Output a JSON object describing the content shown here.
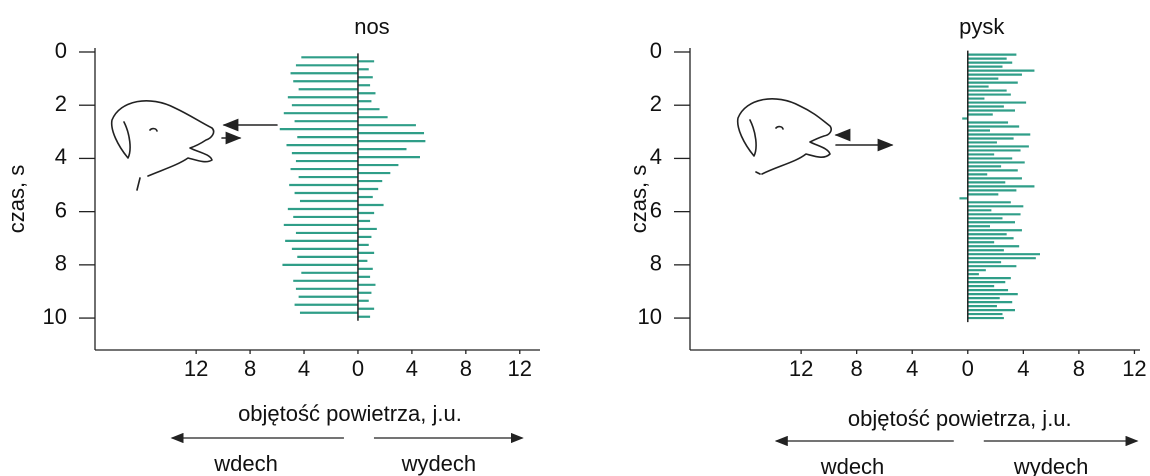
{
  "chart_data": [
    {
      "type": "barh",
      "title": "nos",
      "ylabel": "czas, s",
      "xlabel": "objętość powietrza, j.u.",
      "annotations": [
        "wdech",
        "wydech"
      ],
      "color": "#2f9e88",
      "yreverse": true,
      "xlim": [
        -19.5,
        13.5
      ],
      "ylim": [
        -0.15,
        11.2
      ],
      "xticks": [
        {
          "value": -12,
          "label": "12"
        },
        {
          "value": -8,
          "label": "8"
        },
        {
          "value": -4,
          "label": "4"
        },
        0,
        4,
        8,
        12
      ],
      "yticks": [
        0,
        2,
        4,
        6,
        8,
        10
      ],
      "y": [
        0.2,
        0.35,
        0.5,
        0.65,
        0.8,
        0.95,
        1.1,
        1.25,
        1.4,
        1.55,
        1.7,
        1.85,
        2.0,
        2.15,
        2.3,
        2.45,
        2.6,
        2.75,
        2.9,
        3.05,
        3.2,
        3.35,
        3.5,
        3.65,
        3.8,
        3.95,
        4.1,
        4.25,
        4.4,
        4.55,
        4.7,
        4.85,
        5.0,
        5.15,
        5.3,
        5.45,
        5.6,
        5.75,
        5.9,
        6.05,
        6.2,
        6.35,
        6.5,
        6.65,
        6.8,
        6.95,
        7.1,
        7.25,
        7.4,
        7.55,
        7.7,
        7.85,
        8.0,
        8.15,
        8.3,
        8.45,
        8.6,
        8.75,
        8.9,
        9.05,
        9.2,
        9.35,
        9.5,
        9.65,
        9.8,
        9.95
      ],
      "values": [
        -4.2,
        1.2,
        -4.6,
        0.8,
        -5,
        1.1,
        -4.8,
        0.9,
        -4.4,
        1.3,
        -5.2,
        1,
        -4.9,
        1.6,
        -5.5,
        2.2,
        -4.7,
        4.3,
        -5.8,
        4.9,
        -4.5,
        5,
        -5.3,
        3.6,
        -4.9,
        4.6,
        -4.6,
        3,
        -5,
        2.4,
        -4.4,
        1.8,
        -5.1,
        1.5,
        -4.7,
        1.1,
        -4.3,
        1.9,
        -5.2,
        1.2,
        -4.8,
        0.9,
        -5.5,
        1.4,
        -4.6,
        1,
        -5.4,
        0.8,
        -4.9,
        1.2,
        -4.5,
        0.7,
        -5.6,
        1.1,
        -4.2,
        0.9,
        -4.8,
        1.3,
        -4.6,
        1,
        -4.4,
        0.8,
        -4.7,
        1.2,
        -4.3,
        0.9
      ]
    },
    {
      "type": "barh",
      "title": "pysk",
      "ylabel": "czas, s",
      "xlabel": "objętość powietrza, j.u.",
      "annotations": [
        "wdech",
        "wydech"
      ],
      "color": "#2f9e88",
      "yreverse": true,
      "xlim": [
        -20,
        12.4
      ],
      "ylim": [
        -0.15,
        11.2
      ],
      "xticks": [
        {
          "value": -12,
          "label": "12"
        },
        {
          "value": -8,
          "label": "8"
        },
        {
          "value": -4,
          "label": "4"
        },
        0,
        4,
        8,
        12
      ],
      "yticks": [
        0,
        2,
        4,
        6,
        8,
        10
      ],
      "y": [
        0.1,
        0.25,
        0.4,
        0.55,
        0.7,
        0.85,
        1.0,
        1.15,
        1.3,
        1.45,
        1.6,
        1.75,
        1.9,
        2.05,
        2.2,
        2.35,
        2.5,
        2.65,
        2.8,
        2.95,
        3.1,
        3.25,
        3.4,
        3.55,
        3.7,
        3.85,
        4.0,
        4.15,
        4.3,
        4.45,
        4.6,
        4.75,
        4.9,
        5.05,
        5.2,
        5.35,
        5.5,
        5.65,
        5.8,
        5.95,
        6.1,
        6.25,
        6.4,
        6.55,
        6.7,
        6.85,
        7.0,
        7.15,
        7.3,
        7.45,
        7.6,
        7.75,
        7.9,
        8.05,
        8.2,
        8.35,
        8.5,
        8.65,
        8.8,
        8.95,
        9.1,
        9.25,
        9.4,
        9.55,
        9.7,
        9.85,
        10.0
      ],
      "values": [
        3.5,
        2.8,
        3.2,
        2.5,
        4.8,
        3.9,
        2.2,
        3.6,
        1.5,
        2.8,
        3.1,
        1.2,
        4.2,
        2.6,
        3.4,
        1.8,
        -0.4,
        2.9,
        3.7,
        1.6,
        4.5,
        3.3,
        2.1,
        4.4,
        3.8,
        1.9,
        3.2,
        4.1,
        2.4,
        3.6,
        1.4,
        3.9,
        2.7,
        4.8,
        3.5,
        2.2,
        -0.6,
        3.1,
        4,
        1.7,
        3.8,
        2.5,
        3.4,
        1.6,
        3.9,
        2.8,
        3.3,
        1.9,
        3.7,
        2.6,
        5.2,
        4.9,
        2.4,
        3.5,
        1.3,
        0.8,
        3.1,
        2.7,
        1.9,
        2.9,
        3.6,
        2.3,
        3.2,
        2.1,
        3.4,
        2.5,
        2.6
      ]
    }
  ]
}
